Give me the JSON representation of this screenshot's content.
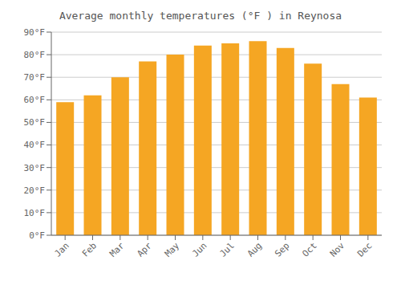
{
  "chart_data": {
    "type": "bar",
    "title": "Average monthly temperatures (°F ) in Reynosa",
    "categories": [
      "Jan",
      "Feb",
      "Mar",
      "Apr",
      "May",
      "Jun",
      "Jul",
      "Aug",
      "Sep",
      "Oct",
      "Nov",
      "Dec"
    ],
    "values": [
      59,
      62,
      70,
      77,
      80,
      84,
      85,
      86,
      83,
      76,
      67,
      61
    ],
    "color": "#F5A623",
    "ylim": [
      0,
      90
    ],
    "yticks": [
      {
        "value": 0,
        "label": "0°F"
      },
      {
        "value": 10,
        "label": "10°F"
      },
      {
        "value": 20,
        "label": "20°F"
      },
      {
        "value": 30,
        "label": "30°F"
      },
      {
        "value": 40,
        "label": "40°F"
      },
      {
        "value": 50,
        "label": "50°F"
      },
      {
        "value": 60,
        "label": "60°F"
      },
      {
        "value": 70,
        "label": "70°F"
      },
      {
        "value": 80,
        "label": "80°F"
      },
      {
        "value": 90,
        "label": "90°F"
      }
    ],
    "grid": true
  }
}
